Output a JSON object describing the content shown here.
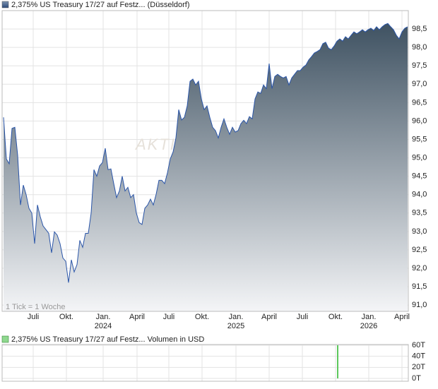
{
  "chart_data": [
    {
      "type": "area",
      "title": "2,375% US Treasury 17/27 auf Festz... (Düsseldorf)",
      "note": "1 Tick = 1 Woche",
      "watermark": "AKTI",
      "color": "#2a55a8",
      "fill_top": "#3f5262",
      "fill_bottom": "#f4f5f7",
      "grid": true,
      "xlim": [
        0,
        143
      ],
      "ylim": [
        90.83,
        99.0
      ],
      "xticks": [
        {
          "value": 10.5,
          "label": "Juli"
        },
        {
          "value": 22.25,
          "label": "Okt."
        },
        {
          "value": 35.25,
          "label": "Jan."
        },
        {
          "value": 47.25,
          "label": "April"
        },
        {
          "value": 58.5,
          "label": "Juli"
        },
        {
          "value": 70.25,
          "label": "Okt."
        },
        {
          "value": 82.25,
          "label": "Jan."
        },
        {
          "value": 94,
          "label": "April"
        },
        {
          "value": 105.75,
          "label": "Juli"
        },
        {
          "value": 117.5,
          "label": "Okt."
        },
        {
          "value": 129.25,
          "label": "Jan."
        },
        {
          "value": 141,
          "label": "April"
        }
      ],
      "year_labels": [
        {
          "value": 35.25,
          "label": "2024"
        },
        {
          "value": 82.25,
          "label": "2025"
        },
        {
          "value": 129.25,
          "label": "2026"
        }
      ],
      "yticks": [
        {
          "value": 91.0,
          "label": "91,0"
        },
        {
          "value": 91.5,
          "label": "91,5"
        },
        {
          "value": 92.0,
          "label": "92,0"
        },
        {
          "value": 92.5,
          "label": "92,5"
        },
        {
          "value": 93.0,
          "label": "93,0"
        },
        {
          "value": 93.5,
          "label": "93,5"
        },
        {
          "value": 94.0,
          "label": "94,0"
        },
        {
          "value": 94.5,
          "label": "94,5"
        },
        {
          "value": 95.0,
          "label": "95,0"
        },
        {
          "value": 95.5,
          "label": "95,5"
        },
        {
          "value": 96.0,
          "label": "96,0"
        },
        {
          "value": 96.5,
          "label": "96,5"
        },
        {
          "value": 97.0,
          "label": "97,0"
        },
        {
          "value": 97.5,
          "label": "97,5"
        },
        {
          "value": 98.0,
          "label": "98,0"
        },
        {
          "value": 98.5,
          "label": "98,5"
        }
      ],
      "values": [
        96.1,
        94.97,
        94.84,
        95.8,
        95.83,
        95.07,
        93.72,
        94.26,
        94.0,
        93.63,
        93.5,
        92.67,
        93.72,
        93.4,
        93.15,
        93.05,
        92.95,
        92.42,
        92.99,
        92.9,
        92.67,
        92.28,
        92.19,
        91.61,
        92.23,
        91.9,
        92.1,
        92.76,
        92.57,
        92.95,
        92.95,
        93.5,
        94.68,
        94.5,
        94.78,
        94.87,
        95.26,
        94.68,
        94.7,
        94.3,
        93.92,
        94.1,
        94.5,
        94.1,
        94.2,
        93.92,
        94.0,
        93.5,
        93.24,
        93.19,
        93.63,
        93.72,
        93.88,
        93.72,
        94.01,
        94.39,
        94.39,
        94.3,
        94.59,
        94.97,
        95.16,
        95.54,
        96.31,
        96.03,
        96.1,
        96.41,
        97.08,
        97.14,
        96.98,
        97.08,
        96.6,
        96.31,
        96.41,
        96.1,
        95.83,
        95.74,
        95.54,
        95.83,
        96.06,
        95.83,
        95.64,
        95.83,
        95.7,
        95.74,
        95.93,
        96.02,
        95.93,
        96.12,
        96.06,
        96.6,
        96.79,
        96.75,
        96.98,
        96.88,
        97.56,
        96.88,
        97.21,
        97.27,
        97.21,
        97.17,
        97.21,
        96.98,
        97.17,
        97.27,
        97.37,
        97.37,
        97.46,
        97.52,
        97.66,
        97.75,
        97.85,
        97.89,
        97.94,
        98.1,
        98.14,
        97.98,
        97.94,
        98.04,
        98.17,
        98.23,
        98.17,
        98.29,
        98.23,
        98.33,
        98.42,
        98.37,
        98.42,
        98.48,
        98.42,
        98.48,
        98.52,
        98.46,
        98.56,
        98.48,
        98.56,
        98.62,
        98.65,
        98.56,
        98.48,
        98.33,
        98.23,
        98.42,
        98.52,
        98.56
      ]
    },
    {
      "type": "bar",
      "title": "2,375% US Treasury 17/27 auf Festz... Volumen in USD",
      "color": "#5cc85c",
      "xlim": [
        0,
        143
      ],
      "ylim": [
        0,
        60
      ],
      "yticks": [
        {
          "value": 0,
          "label": "0T"
        },
        {
          "value": 20,
          "label": "20T"
        },
        {
          "value": 40,
          "label": "40T"
        },
        {
          "value": 60,
          "label": "60T"
        }
      ],
      "x": [
        118.25
      ],
      "values": [
        60
      ]
    }
  ]
}
